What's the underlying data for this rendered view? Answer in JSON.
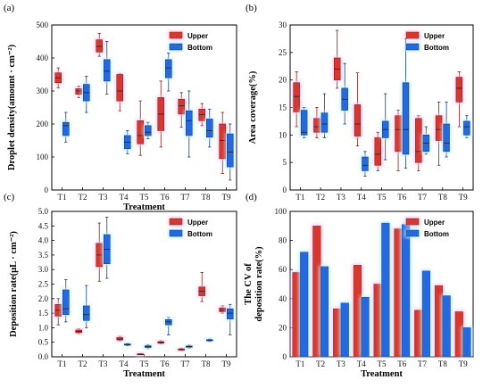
{
  "colors": {
    "upper": "#d6382f",
    "bottom": "#2469de",
    "upper_edge": "#8f1c17",
    "bottom_edge": "#143f8c",
    "glow_upper": "#f3c4ef",
    "glow_bottom": "#bfeef6"
  },
  "chart_data": [
    {
      "id": "a",
      "panel_label": "(a)",
      "type": "box",
      "xlabel": "Treatment",
      "ylabel": "Droplet density(amount · cm⁻²)",
      "ylim": [
        0,
        500
      ],
      "yticks": [
        0,
        100,
        200,
        300,
        400,
        500
      ],
      "categories": [
        "T1",
        "T2",
        "T3",
        "T4",
        "T5",
        "T6",
        "T7",
        "T8",
        "T9"
      ],
      "legend": {
        "position": "top-right",
        "entries": [
          "Upper",
          "Bottom"
        ]
      },
      "series": [
        {
          "name": "Upper",
          "boxes": [
            {
              "min": 310,
              "q1": 325,
              "median": 340,
              "q3": 355,
              "max": 370
            },
            {
              "min": 280,
              "q1": 290,
              "median": 300,
              "q3": 307,
              "max": 315
            },
            {
              "min": 405,
              "q1": 418,
              "median": 435,
              "q3": 455,
              "max": 475
            },
            {
              "min": 240,
              "q1": 270,
              "median": 300,
              "q3": 350,
              "max": 352
            },
            {
              "min": 105,
              "q1": 140,
              "median": 165,
              "q3": 210,
              "max": 270
            },
            {
              "min": 130,
              "q1": 180,
              "median": 230,
              "q3": 280,
              "max": 330
            },
            {
              "min": 190,
              "q1": 230,
              "median": 255,
              "q3": 275,
              "max": 295
            },
            {
              "min": 195,
              "q1": 210,
              "median": 228,
              "q3": 245,
              "max": 262
            },
            {
              "min": 50,
              "q1": 95,
              "median": 150,
              "q3": 200,
              "max": 235
            }
          ]
        },
        {
          "name": "Bottom",
          "boxes": [
            {
              "min": 145,
              "q1": 165,
              "median": 195,
              "q3": 205,
              "max": 235
            },
            {
              "min": 235,
              "q1": 270,
              "median": 295,
              "q3": 320,
              "max": 345
            },
            {
              "min": 290,
              "q1": 330,
              "median": 360,
              "q3": 395,
              "max": 450
            },
            {
              "min": 110,
              "q1": 125,
              "median": 145,
              "q3": 165,
              "max": 180
            },
            {
              "min": 155,
              "q1": 165,
              "median": 175,
              "q3": 195,
              "max": 205
            },
            {
              "min": 300,
              "q1": 340,
              "median": 370,
              "q3": 395,
              "max": 415
            },
            {
              "min": 100,
              "q1": 165,
              "median": 210,
              "q3": 240,
              "max": 300
            },
            {
              "min": 130,
              "q1": 160,
              "median": 180,
              "q3": 215,
              "max": 245
            },
            {
              "min": 30,
              "q1": 70,
              "median": 115,
              "q3": 170,
              "max": 200
            }
          ]
        }
      ]
    },
    {
      "id": "b",
      "panel_label": "(b)",
      "type": "box",
      "xlabel": "",
      "ylabel": "Area coverage(%)",
      "ylim": [
        0,
        30
      ],
      "yticks": [
        0,
        5,
        10,
        15,
        20,
        25,
        30
      ],
      "categories": [
        "T1",
        "T2",
        "T3",
        "T4",
        "T5",
        "T6",
        "T7",
        "T8",
        "T9"
      ],
      "legend": {
        "position": "top-right",
        "entries": [
          "Upper",
          "Bottom"
        ]
      },
      "series": [
        {
          "name": "Upper",
          "boxes": [
            {
              "min": 11.5,
              "q1": 14.2,
              "median": 17.0,
              "q3": 19.5,
              "max": 21.5
            },
            {
              "min": 9.5,
              "q1": 10.5,
              "median": 11.5,
              "q3": 13.0,
              "max": 15.0
            },
            {
              "min": 18.5,
              "q1": 20.0,
              "median": 22.0,
              "q3": 24.0,
              "max": 29.0
            },
            {
              "min": 8.0,
              "q1": 9.8,
              "median": 12.0,
              "q3": 15.5,
              "max": 21.3
            },
            {
              "min": 3.5,
              "q1": 4.5,
              "median": 6.5,
              "q3": 9.5,
              "max": 10.5
            },
            {
              "min": 3.5,
              "q1": 7.0,
              "median": 11.0,
              "q3": 13.5,
              "max": 14.5
            },
            {
              "min": 3.5,
              "q1": 5.0,
              "median": 7.0,
              "q3": 13.0,
              "max": 13.5
            },
            {
              "min": 4.5,
              "q1": 9.0,
              "median": 11.0,
              "q3": 13.5,
              "max": 16.0
            },
            {
              "min": 11.5,
              "q1": 16.0,
              "median": 18.5,
              "q3": 20.5,
              "max": 21.5
            }
          ]
        },
        {
          "name": "Bottom",
          "boxes": [
            {
              "min": 9.5,
              "q1": 10.0,
              "median": 10.5,
              "q3": 14.5,
              "max": 15.0
            },
            {
              "min": 9.5,
              "q1": 10.5,
              "median": 12.0,
              "q3": 14.0,
              "max": 17.5
            },
            {
              "min": 12.0,
              "q1": 14.5,
              "median": 16.5,
              "q3": 18.5,
              "max": 23.0
            },
            {
              "min": 2.5,
              "q1": 3.5,
              "median": 4.5,
              "q3": 6.0,
              "max": 7.0
            },
            {
              "min": 5.5,
              "q1": 9.5,
              "median": 11.0,
              "q3": 12.5,
              "max": 17.5
            },
            {
              "min": 4.0,
              "q1": 6.5,
              "median": 11.0,
              "q3": 19.5,
              "max": 27.5
            },
            {
              "min": 6.5,
              "q1": 7.0,
              "median": 8.5,
              "q3": 10.0,
              "max": 11.5
            },
            {
              "min": 6.0,
              "q1": 7.0,
              "median": 8.5,
              "q3": 12.0,
              "max": 16.0
            },
            {
              "min": 9.5,
              "q1": 10.0,
              "median": 11.5,
              "q3": 12.5,
              "max": 13.5
            }
          ]
        }
      ]
    },
    {
      "id": "c",
      "panel_label": "(c)",
      "type": "box",
      "xlabel": "Treatment",
      "ylabel": "Deposition rate(µL · cm⁻²)",
      "ylim": [
        0,
        5.0
      ],
      "yticks": [
        0.0,
        0.5,
        1.0,
        1.5,
        2.0,
        2.5,
        3.0,
        3.5,
        4.0,
        4.5,
        5.0
      ],
      "categories": [
        "T1",
        "T2",
        "T3",
        "T4",
        "T5",
        "T6",
        "T7",
        "T8",
        "T9"
      ],
      "legend": {
        "position": "top-right",
        "entries": [
          "Upper",
          "Bottom"
        ]
      },
      "series": [
        {
          "name": "Upper",
          "boxes": [
            {
              "min": 1.1,
              "q1": 1.4,
              "median": 1.6,
              "q3": 1.8,
              "max": 2.0
            },
            {
              "min": 0.8,
              "q1": 0.83,
              "median": 0.87,
              "q3": 0.92,
              "max": 0.96
            },
            {
              "min": 2.6,
              "q1": 3.1,
              "median": 3.5,
              "q3": 3.9,
              "max": 4.6
            },
            {
              "min": 0.55,
              "q1": 0.58,
              "median": 0.61,
              "q3": 0.66,
              "max": 0.7
            },
            {
              "min": 0.07,
              "q1": 0.08,
              "median": 0.09,
              "q3": 0.1,
              "max": 0.11
            },
            {
              "min": 0.45,
              "q1": 0.47,
              "median": 0.49,
              "q3": 0.52,
              "max": 0.55
            },
            {
              "min": 0.22,
              "q1": 0.23,
              "median": 0.25,
              "q3": 0.27,
              "max": 0.29
            },
            {
              "min": 1.9,
              "q1": 2.1,
              "median": 2.25,
              "q3": 2.4,
              "max": 2.9
            },
            {
              "min": 1.5,
              "q1": 1.55,
              "median": 1.6,
              "q3": 1.68,
              "max": 1.75
            }
          ]
        },
        {
          "name": "Bottom",
          "boxes": [
            {
              "min": 1.2,
              "q1": 1.45,
              "median": 1.65,
              "q3": 2.3,
              "max": 2.65
            },
            {
              "min": 1.0,
              "q1": 1.25,
              "median": 1.45,
              "q3": 1.75,
              "max": 2.45
            },
            {
              "min": 2.7,
              "q1": 3.2,
              "median": 3.7,
              "q3": 4.2,
              "max": 4.8
            },
            {
              "min": 0.38,
              "q1": 0.4,
              "median": 0.42,
              "q3": 0.44,
              "max": 0.46
            },
            {
              "min": 0.28,
              "q1": 0.32,
              "median": 0.35,
              "q3": 0.38,
              "max": 0.42
            },
            {
              "min": 0.75,
              "q1": 1.1,
              "median": 1.2,
              "q3": 1.28,
              "max": 1.35
            },
            {
              "min": 0.3,
              "q1": 0.33,
              "median": 0.35,
              "q3": 0.37,
              "max": 0.4
            },
            {
              "min": 0.53,
              "q1": 0.55,
              "median": 0.57,
              "q3": 0.59,
              "max": 0.61
            },
            {
              "min": 0.75,
              "q1": 1.3,
              "median": 1.5,
              "q3": 1.65,
              "max": 1.8
            }
          ]
        }
      ]
    },
    {
      "id": "d",
      "panel_label": "(d)",
      "type": "bar",
      "xlabel": "Treatment",
      "ylabel": "The CV of deposition rate(%)",
      "ylabel_lines": [
        "The CV of",
        "deposition rate(%)"
      ],
      "ylim": [
        0,
        100
      ],
      "yticks": [
        0,
        20,
        40,
        60,
        80,
        100
      ],
      "categories": [
        "T1",
        "T2",
        "T3",
        "T4",
        "T5",
        "T6",
        "T7",
        "T8",
        "T9"
      ],
      "legend": {
        "position": "top-right",
        "entries": [
          "Upper",
          "Bottom"
        ]
      },
      "series": [
        {
          "name": "Upper",
          "values": [
            58,
            90,
            33,
            63,
            50,
            88,
            32,
            49,
            31
          ]
        },
        {
          "name": "Bottom",
          "values": [
            72,
            62,
            37,
            41,
            92,
            91,
            59,
            42,
            20
          ]
        }
      ]
    }
  ]
}
